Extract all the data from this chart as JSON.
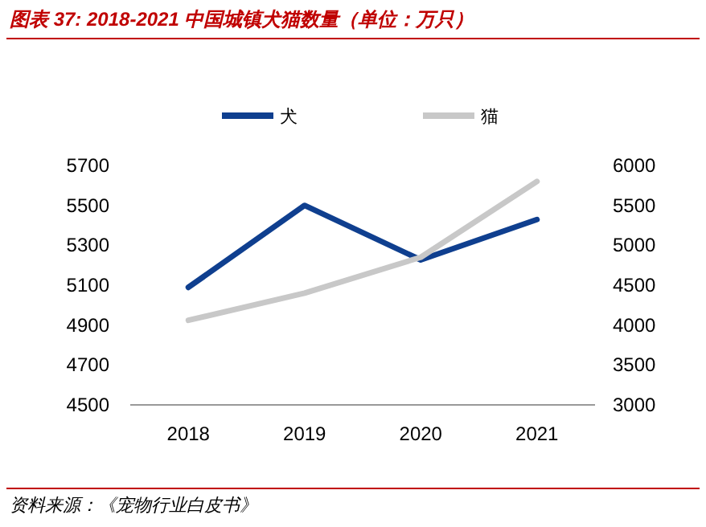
{
  "chart_data": {
    "type": "line",
    "title": "图表 37:  2018-2021 中国城镇犬猫数量（单位：万只）",
    "categories": [
      "2018",
      "2019",
      "2020",
      "2021"
    ],
    "series": [
      {
        "name": "犬",
        "color": "#0f3f8f",
        "values": [
          5089,
          5500,
          5227,
          5429
        ]
      },
      {
        "name": "猫",
        "color": "#c8c8c8",
        "values": [
          4060,
          4400,
          4850,
          5800
        ],
        "axis": "y2"
      }
    ],
    "ylim": [
      4500,
      5700
    ],
    "yticks": [
      4500,
      4700,
      4900,
      5100,
      5300,
      5500,
      5700
    ],
    "y2lim": [
      3000,
      6000
    ],
    "y2ticks": [
      3000,
      3500,
      4000,
      4500,
      5000,
      5500,
      6000
    ],
    "legend": "top",
    "marker": "none",
    "line_style": "solid",
    "annotations": [
      "资料来源：《宠物行业白皮书》"
    ]
  }
}
